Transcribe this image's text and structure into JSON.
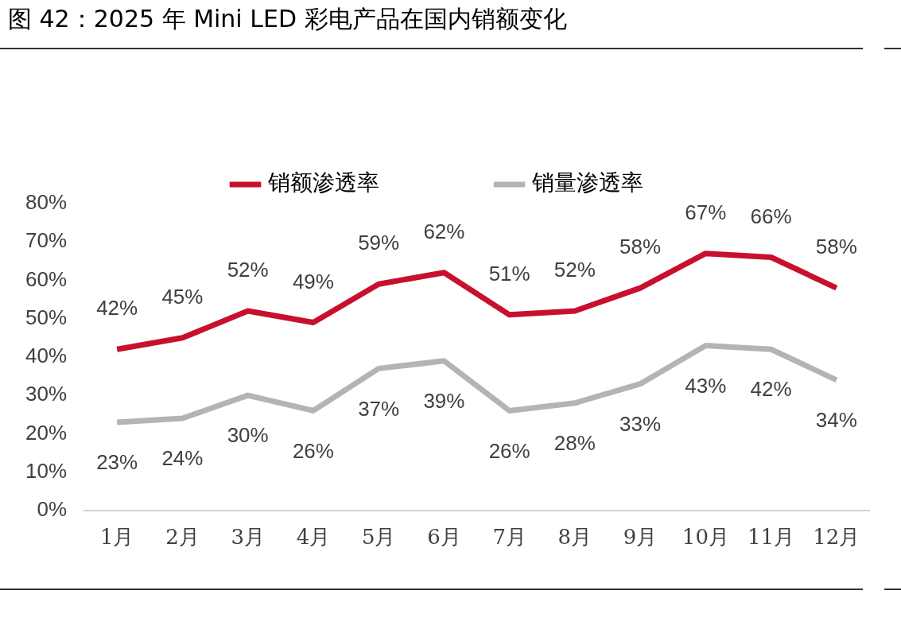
{
  "chart_data": {
    "type": "line",
    "title": "图 42：2025 年 Mini LED 彩电产品在国内销额变化",
    "categories": [
      "1月",
      "2月",
      "3月",
      "4月",
      "5月",
      "6月",
      "7月",
      "8月",
      "9月",
      "10月",
      "11月",
      "12月"
    ],
    "series": [
      {
        "name": "销额渗透率",
        "color": "#c8102e",
        "values": [
          42,
          45,
          52,
          49,
          59,
          62,
          51,
          52,
          58,
          67,
          66,
          58
        ],
        "value_labels": [
          "42%",
          "45%",
          "52%",
          "49%",
          "59%",
          "62%",
          "51%",
          "52%",
          "58%",
          "67%",
          "66%",
          "58%"
        ]
      },
      {
        "name": "销量渗透率",
        "color": "#b4b4b4",
        "values": [
          23,
          24,
          30,
          26,
          37,
          39,
          26,
          28,
          33,
          43,
          42,
          34
        ],
        "value_labels": [
          "23%",
          "24%",
          "30%",
          "26%",
          "37%",
          "39%",
          "26%",
          "28%",
          "33%",
          "43%",
          "42%",
          "34%"
        ]
      }
    ],
    "ylim": [
      0,
      80
    ],
    "yticks": [
      {
        "value": 0,
        "label": "0%"
      },
      {
        "value": 10,
        "label": "10%"
      },
      {
        "value": 20,
        "label": "20%"
      },
      {
        "value": 30,
        "label": "30%"
      },
      {
        "value": 40,
        "label": "40%"
      },
      {
        "value": 50,
        "label": "50%"
      },
      {
        "value": 60,
        "label": "60%"
      },
      {
        "value": 70,
        "label": "70%"
      },
      {
        "value": 80,
        "label": "80%"
      }
    ],
    "grid": false,
    "legend": "top",
    "marker": "none",
    "line_style": "solid"
  }
}
